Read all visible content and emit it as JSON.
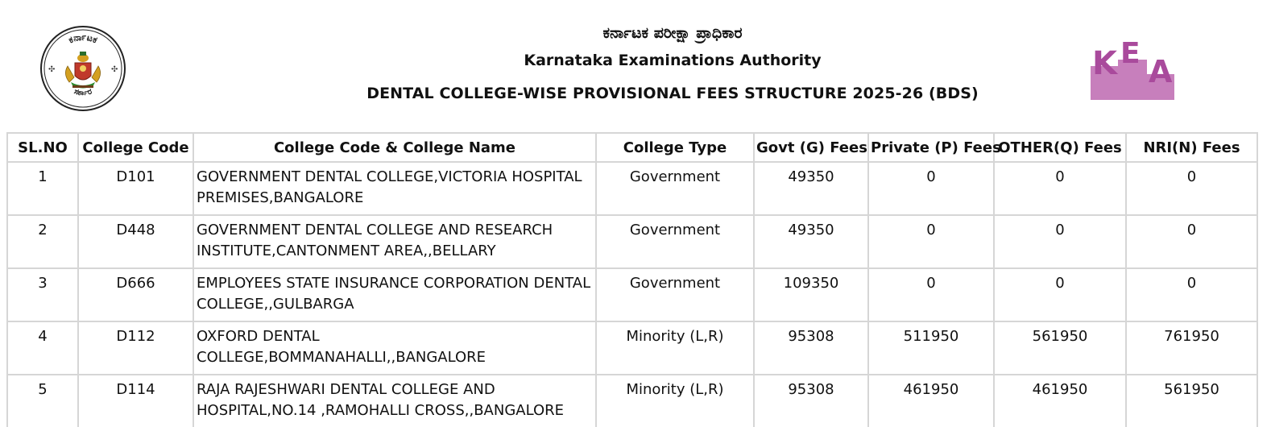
{
  "header": {
    "kannada_title": "ಕರ್ನಾಟಕ ಪರೀಕ್ಷಾ ಪ್ರಾಧಿಕಾರ",
    "english_title": "Karnataka Examinations Authority",
    "document_title": "DENTAL COLLEGE-WISE  PROVISIONAL FEES STRUCTURE 2025-26 (BDS)"
  },
  "logos": {
    "emblem": {
      "icon": "karnataka-emblem-icon",
      "top_text": "ಕರ್ನಾಟಕ",
      "bottom_text": "ಸರ್ಕಾರ"
    },
    "kea": {
      "icon": "kea-logo-icon",
      "text": "KEA",
      "color": "#a94a9c",
      "base_color": "#c77fbc"
    }
  },
  "table": {
    "columns": [
      "SL.NO",
      "College Code",
      "College Code & College Name",
      "College Type",
      "Govt (G) Fees",
      "Private (P) Fees",
      "OTHER(Q) Fees",
      "NRI(N) Fees"
    ],
    "rows": [
      {
        "sl": "1",
        "code": "D101",
        "name": "GOVERNMENT DENTAL COLLEGE,VICTORIA HOSPITAL PREMISES,BANGALORE",
        "type": "Government",
        "govt": "49350",
        "private": "0",
        "other": "0",
        "nri": "0"
      },
      {
        "sl": "2",
        "code": "D448",
        "name": "GOVERNMENT DENTAL COLLEGE AND RESEARCH INSTITUTE,CANTONMENT AREA,,BELLARY",
        "type": "Government",
        "govt": "49350",
        "private": "0",
        "other": "0",
        "nri": "0"
      },
      {
        "sl": "3",
        "code": "D666",
        "name": "EMPLOYEES STATE INSURANCE CORPORATION DENTAL COLLEGE,,GULBARGA",
        "type": "Government",
        "govt": "109350",
        "private": "0",
        "other": "0",
        "nri": "0"
      },
      {
        "sl": "4",
        "code": "D112",
        "name": "OXFORD DENTAL COLLEGE,BOMMANAHALLI,,BANGALORE",
        "type": "Minority (L,R)",
        "govt": "95308",
        "private": "511950",
        "other": "561950",
        "nri": "761950"
      },
      {
        "sl": "5",
        "code": "D114",
        "name": "RAJA RAJESHWARI DENTAL COLLEGE AND HOSPITAL,NO.14 ,RAMOHALLI CROSS,,BANGALORE",
        "type": "Minority (L,R)",
        "govt": "95308",
        "private": "461950",
        "other": "461950",
        "nri": "561950"
      }
    ]
  }
}
